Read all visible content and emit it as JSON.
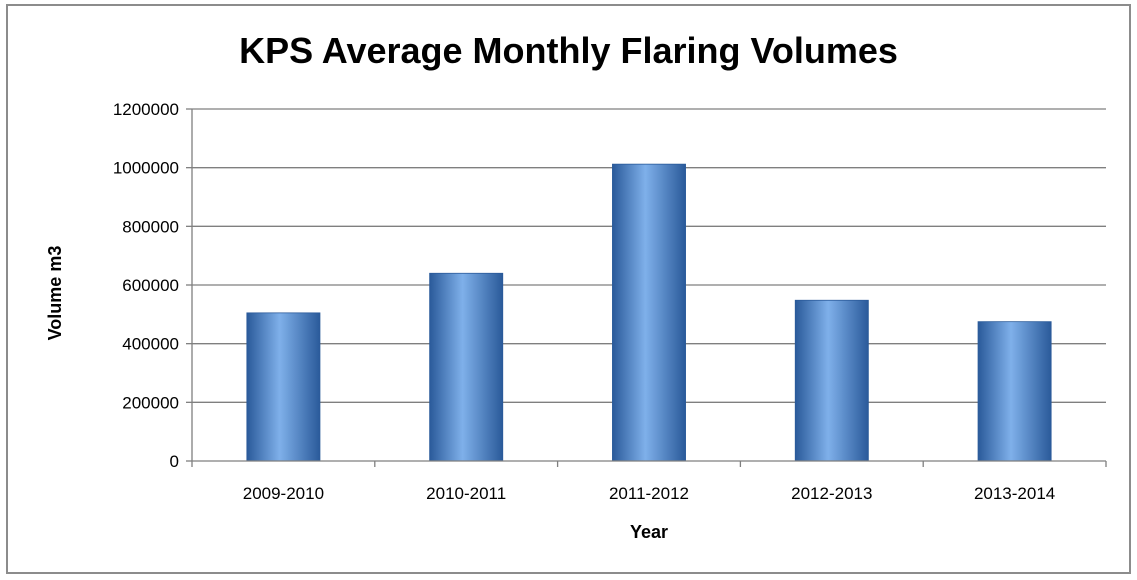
{
  "chart_data": {
    "type": "bar",
    "title": "KPS Average Monthly Flaring Volumes",
    "xlabel": "Year",
    "ylabel": "Volume m3",
    "categories": [
      "2009-2010",
      "2010-2011",
      "2011-2012",
      "2012-2013",
      "2013-2014"
    ],
    "values": [
      505000,
      640000,
      1012000,
      548000,
      475000
    ],
    "ylim": [
      0,
      1200000
    ],
    "yticks": [
      0,
      200000,
      400000,
      600000,
      800000,
      1000000,
      1200000
    ],
    "grid": true,
    "legend": "none",
    "bar_color": "#4a7fc6",
    "bar_color_light": "#7fb0ea",
    "bar_color_dark": "#2a5a9a",
    "grid_color": "#7f7f7f"
  }
}
